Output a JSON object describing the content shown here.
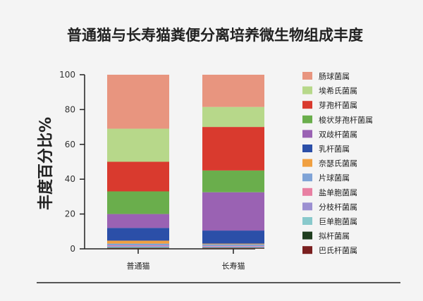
{
  "chart_data": {
    "type": "bar",
    "stacked": true,
    "title": "普通猫与长寿猫粪便分离培养微生物组成丰度",
    "xlabel": "",
    "ylabel": "丰度百分比%",
    "ylim": [
      0,
      100
    ],
    "yticks": [
      "0",
      "20",
      "40",
      "60",
      "80",
      "100"
    ],
    "categories": [
      "普通猫",
      "长寿猫"
    ],
    "legend_position": "right",
    "series": [
      {
        "name": "巴氏杆菌属",
        "color": "#7a1f1f",
        "values": [
          0.3,
          0.3
        ]
      },
      {
        "name": "拟杆菌属",
        "color": "#1f3d1f",
        "values": [
          0.3,
          0.3
        ]
      },
      {
        "name": "巨单胞菌属",
        "color": "#88c9cc",
        "values": [
          0.5,
          0.3
        ]
      },
      {
        "name": "分枝杆菌属",
        "color": "#9b8fd1",
        "values": [
          0.5,
          0.4
        ]
      },
      {
        "name": "盐单胞菌属",
        "color": "#e87fa2",
        "values": [
          0.4,
          0.3
        ]
      },
      {
        "name": "片球菌属",
        "color": "#7fa3d6",
        "values": [
          1.0,
          1.0
        ]
      },
      {
        "name": "奈瑟氏菌属",
        "color": "#f0a041",
        "values": [
          1.7,
          0.4
        ]
      },
      {
        "name": "乳杆菌属",
        "color": "#2b4fa8",
        "values": [
          7.3,
          7.5
        ]
      },
      {
        "name": "双歧杆菌属",
        "color": "#9a62b3",
        "values": [
          8.0,
          22.0
        ]
      },
      {
        "name": "梭状芽孢杆菌属",
        "color": "#6aae4c",
        "values": [
          13.0,
          12.5
        ]
      },
      {
        "name": "芽孢杆菌属",
        "color": "#d93a2e",
        "values": [
          17.0,
          25.0
        ]
      },
      {
        "name": "埃希氏菌属",
        "color": "#b7d88a",
        "values": [
          19.0,
          11.5
        ]
      },
      {
        "name": "肠球菌属",
        "color": "#e8957f",
        "values": [
          31.0,
          18.5
        ]
      }
    ]
  }
}
